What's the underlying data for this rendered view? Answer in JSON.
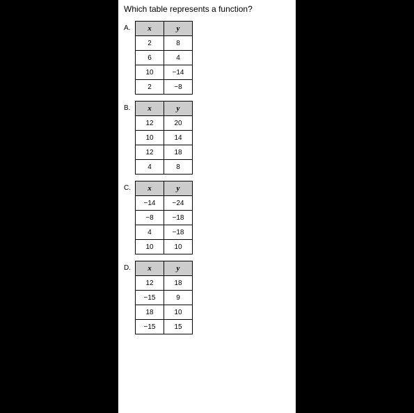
{
  "question": "Which table represents a function?",
  "header_x": "x",
  "header_y": "y",
  "options": {
    "A": {
      "label": "A.",
      "rows": [
        {
          "x": "2",
          "y": "8"
        },
        {
          "x": "6",
          "y": "4"
        },
        {
          "x": "10",
          "y": "−14"
        },
        {
          "x": "2",
          "y": "−8"
        }
      ]
    },
    "B": {
      "label": "B.",
      "rows": [
        {
          "x": "12",
          "y": "20"
        },
        {
          "x": "10",
          "y": "14"
        },
        {
          "x": "12",
          "y": "18"
        },
        {
          "x": "4",
          "y": "8"
        }
      ]
    },
    "C": {
      "label": "C.",
      "rows": [
        {
          "x": "−14",
          "y": "−24"
        },
        {
          "x": "−8",
          "y": "−18"
        },
        {
          "x": "4",
          "y": "−18"
        },
        {
          "x": "10",
          "y": "10"
        }
      ]
    },
    "D": {
      "label": "D.",
      "rows": [
        {
          "x": "12",
          "y": "18"
        },
        {
          "x": "−15",
          "y": "9"
        },
        {
          "x": "18",
          "y": "10"
        },
        {
          "x": "−15",
          "y": "15"
        }
      ]
    }
  },
  "colors": {
    "page_bg": "#ffffff",
    "outer_bg": "#000000",
    "header_bg": "#cccccc",
    "border": "#000000",
    "text": "#000000"
  }
}
